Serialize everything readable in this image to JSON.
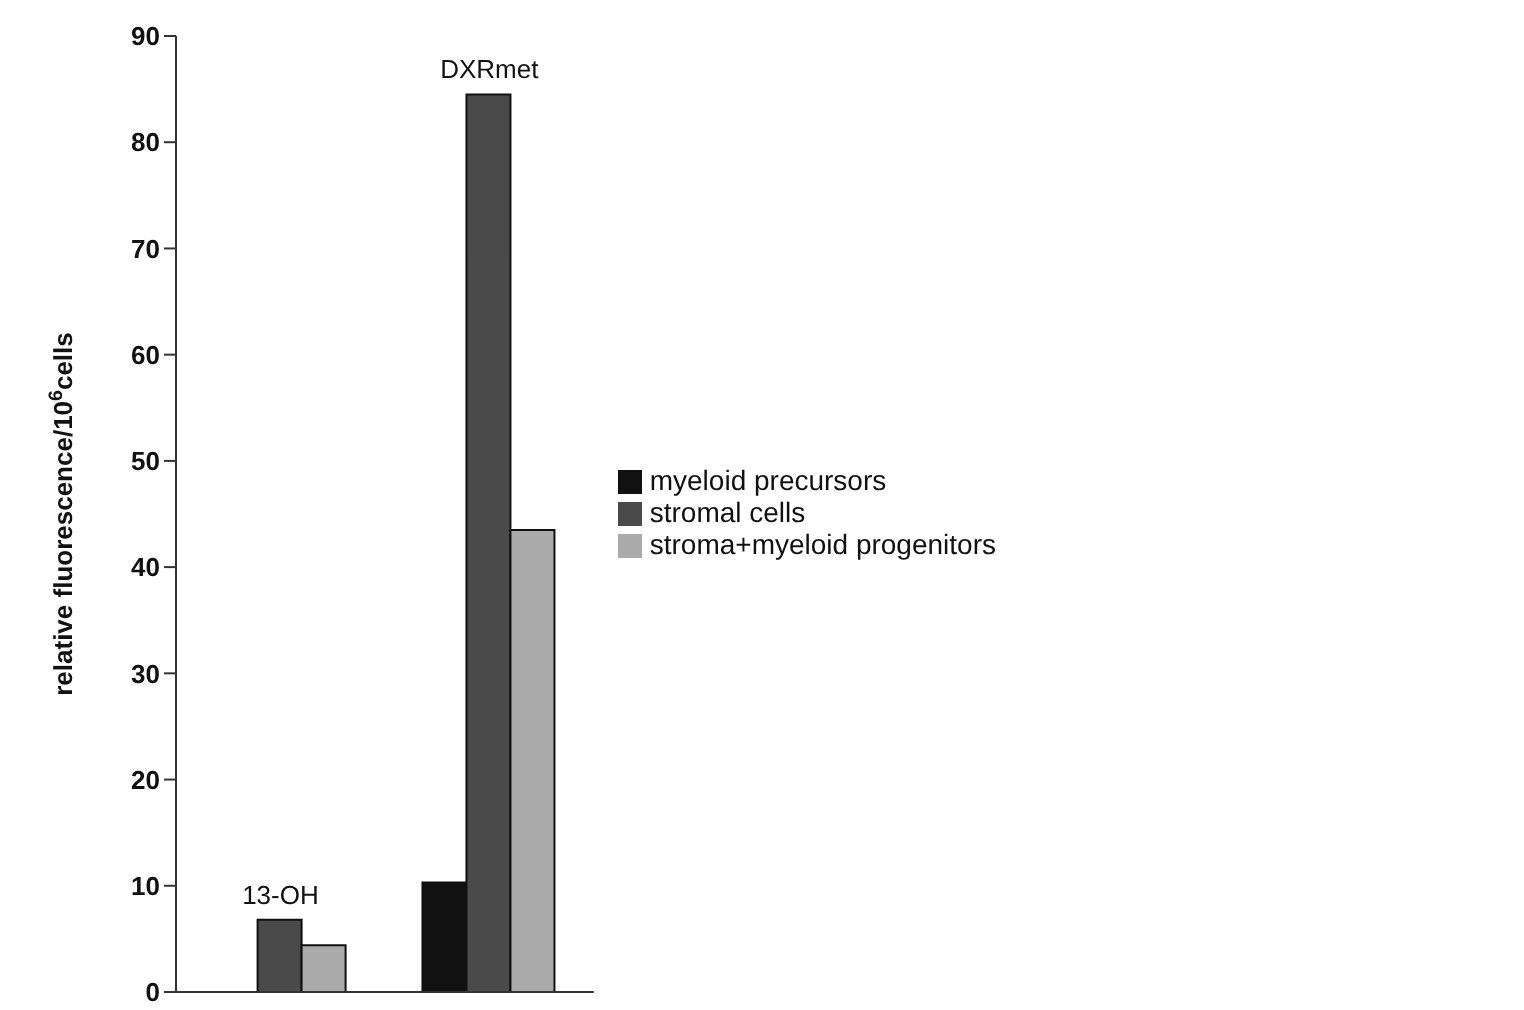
{
  "chart_data": {
    "type": "bar",
    "ylabel": "relative fluorescence/10$^{6}$cells",
    "categories": [
      "13-OH",
      "DXRmet"
    ],
    "series": [
      {
        "name": "myeloid precursors",
        "color": "#111111",
        "values": [
          0,
          10.3
        ]
      },
      {
        "name": "stromal cells",
        "color": "#4a4a4a",
        "values": [
          6.8,
          84.5
        ]
      },
      {
        "name": "stroma+myeloid progenitors",
        "color": "#aaaaaa",
        "values": [
          4.4,
          43.5
        ]
      }
    ],
    "ylim": [
      0,
      90
    ],
    "yticks": [
      0,
      10,
      20,
      30,
      40,
      50,
      60,
      70,
      80,
      90
    ],
    "grid": false,
    "legend": "right"
  }
}
